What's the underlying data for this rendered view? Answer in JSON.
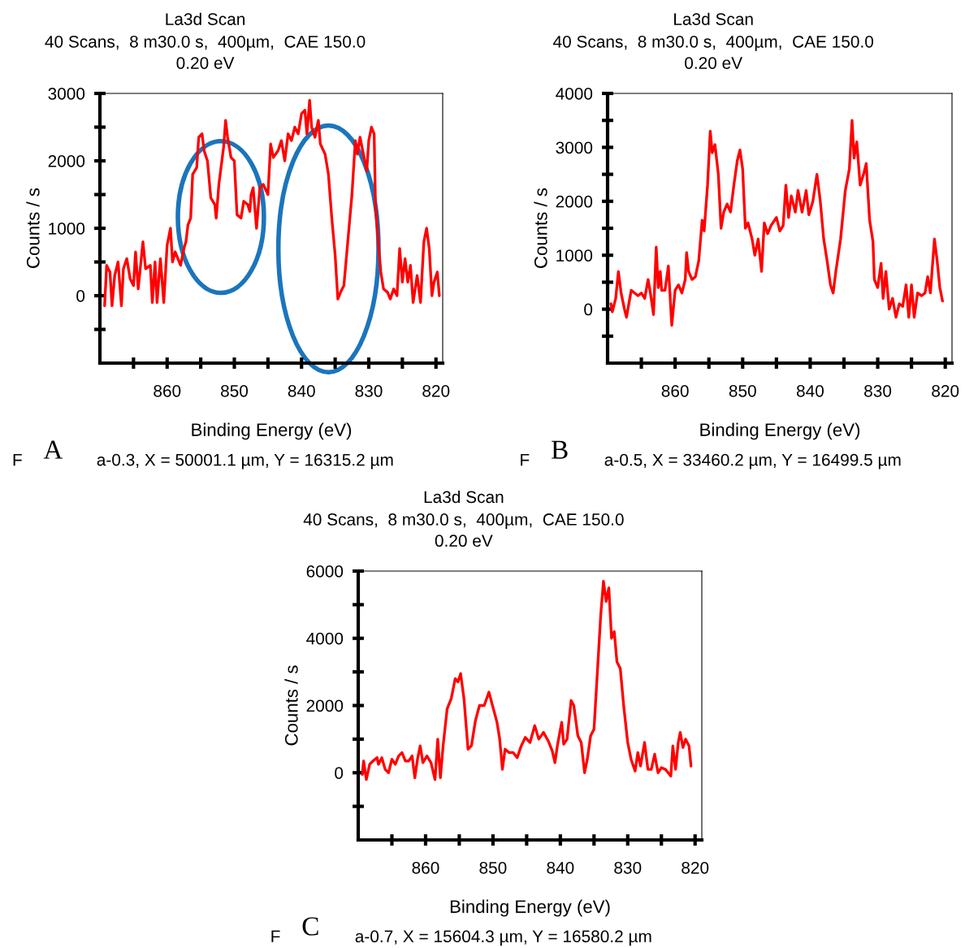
{
  "chart_data": [
    {
      "type": "line",
      "title": "La3d Scan",
      "subtitle": "40 Scans,  8 m30.0 s,  400µm,  CAE 150.0\n0.20 eV",
      "xlabel": "Binding Energy (eV)",
      "ylabel": "Counts / s",
      "annotations": [
        "F",
        "A",
        "a-0.3, X = 50001.1 µm, Y = 16315.2 µm"
      ],
      "xlim": [
        870,
        819
      ],
      "xticks": [
        {
          "value": 865,
          "label": null
        },
        860,
        {
          "value": 855,
          "label": null
        },
        850,
        {
          "value": 845,
          "label": null
        },
        840,
        {
          "value": 835,
          "label": null
        },
        830,
        {
          "value": 825,
          "label": null
        },
        820
      ],
      "ylim": [
        -1000,
        3000
      ],
      "yticks": [
        {
          "value": -500,
          "label": null
        },
        0,
        {
          "value": 500,
          "label": null
        },
        1000,
        {
          "value": 1500,
          "label": null
        },
        2000,
        {
          "value": 2500,
          "label": null
        },
        3000
      ],
      "grid": false,
      "line_style": "solid",
      "series": [
        {
          "color": "#ff0000",
          "x": [
            869.3,
            869,
            868.5,
            868.2,
            867.8,
            867.3,
            866.8,
            866.5,
            866,
            865.5,
            865,
            864.7,
            864.3,
            863.6,
            863.2,
            862.5,
            862.2,
            861.8,
            861.5,
            861,
            860.5,
            860,
            859.5,
            859.2,
            858.8,
            858,
            857.5,
            857.2,
            856.9,
            856.5,
            856.2,
            855.6,
            855.3,
            854.8,
            854.5,
            854,
            853.5,
            852.9,
            852.7,
            852.3,
            851.6,
            851.3,
            851,
            850.5,
            850,
            849.6,
            849,
            848.6,
            848,
            847.7,
            847.5,
            847.2,
            846.7,
            846.2,
            845.7,
            845,
            844.6,
            844.2,
            843.5,
            843,
            842.5,
            842,
            841.5,
            841,
            840.5,
            840,
            839.5,
            839.2,
            838.8,
            838.5,
            838,
            837.5,
            837.2,
            836.5,
            836,
            835.5,
            835,
            834.6,
            834.2,
            833.7,
            833.3,
            832.5,
            832,
            831.7,
            831.3,
            830.8,
            830.3,
            830,
            829.6,
            829.2,
            829,
            828.5,
            828.2,
            827.8,
            827.2,
            826.8,
            826.3,
            825.8,
            825.4,
            825,
            824.6,
            824.2,
            823.8,
            823.4,
            822.8,
            822.3,
            821.8,
            821.4,
            821,
            820.6,
            820.3,
            819.8,
            819.5
          ],
          "values": [
            -150,
            450,
            350,
            -150,
            300,
            500,
            -150,
            400,
            550,
            250,
            150,
            650,
            100,
            800,
            400,
            450,
            -100,
            500,
            -100,
            550,
            -100,
            750,
            1000,
            500,
            650,
            450,
            700,
            800,
            1050,
            1150,
            1800,
            1900,
            2350,
            2400,
            2150,
            2000,
            1450,
            1350,
            1150,
            1650,
            2200,
            2600,
            2350,
            2050,
            2000,
            1200,
            1150,
            1400,
            1350,
            1250,
            1500,
            1600,
            1000,
            1600,
            1650,
            1500,
            2250,
            2050,
            2150,
            2300,
            2000,
            2400,
            2300,
            2500,
            2400,
            2700,
            2750,
            2400,
            2900,
            2500,
            2350,
            2600,
            2250,
            2100,
            1800,
            1150,
            600,
            -50,
            50,
            150,
            600,
            1500,
            2300,
            2100,
            2350,
            2100,
            1850,
            2300,
            2500,
            2400,
            1350,
            700,
            350,
            100,
            50,
            -50,
            100,
            0,
            700,
            200,
            550,
            200,
            450,
            -100,
            300,
            -100,
            800,
            1000,
            700,
            0,
            200,
            350,
            0
          ]
        }
      ]
    },
    {
      "type": "line",
      "title": "La3d Scan",
      "subtitle": "40 Scans,  8 m30.0 s,  400µm,  CAE 150.0\n0.20 eV",
      "xlabel": "Binding Energy (eV)",
      "ylabel": "Counts / s",
      "annotations": [
        "F",
        "B",
        "a-0.5, X = 33460.2 µm, Y = 16499.5 µm"
      ],
      "xlim": [
        870,
        819
      ],
      "xticks": [
        {
          "value": 865,
          "label": null
        },
        860,
        {
          "value": 855,
          "label": null
        },
        850,
        {
          "value": 845,
          "label": null
        },
        840,
        {
          "value": 835,
          "label": null
        },
        830,
        {
          "value": 825,
          "label": null
        },
        820
      ],
      "ylim": [
        -1000,
        4000
      ],
      "yticks": [
        {
          "value": -500,
          "label": null
        },
        0,
        {
          "value": 500,
          "label": null
        },
        1000,
        {
          "value": 1500,
          "label": null
        },
        2000,
        {
          "value": 2500,
          "label": null
        },
        3000,
        {
          "value": 3500,
          "label": null
        },
        4000
      ],
      "grid": false,
      "line_style": "solid",
      "series": [
        {
          "color": "#ff0000",
          "x": [
            869.5,
            869.3,
            868.8,
            868.4,
            868,
            867.5,
            867.2,
            866.5,
            866,
            865.5,
            865,
            864.5,
            864,
            863.6,
            863.2,
            862.8,
            862.5,
            862.2,
            862,
            861.5,
            861,
            860.5,
            860,
            859.5,
            859,
            858.5,
            858.3,
            858,
            857.5,
            857,
            856.5,
            856,
            855.7,
            855.2,
            854.8,
            854.5,
            854.1,
            853.6,
            853.2,
            852.8,
            852.3,
            851.8,
            851.3,
            850.8,
            850.4,
            850,
            849.6,
            849.2,
            848.6,
            848.2,
            847.7,
            847.2,
            846.8,
            846.3,
            845.8,
            845,
            844.5,
            844,
            843.6,
            843.2,
            842.8,
            842.2,
            841.8,
            841.2,
            840.6,
            840.2,
            839.6,
            839,
            838.5,
            838,
            837.5,
            837,
            836.6,
            836.2,
            835.5,
            834.8,
            834.2,
            833.8,
            833.5,
            833.1,
            832.6,
            832.1,
            831.7,
            831.2,
            830.7,
            830.5,
            830,
            829.5,
            829.2,
            828.8,
            828.3,
            827.8,
            827.3,
            826.8,
            826.3,
            825.8,
            825.4,
            825,
            824.6,
            824.1,
            823.5,
            823,
            822.6,
            822.2,
            821.6,
            821.2,
            820.8,
            820.4
          ],
          "values": [
            100,
            -50,
            200,
            700,
            300,
            0,
            -150,
            350,
            300,
            250,
            300,
            200,
            550,
            250,
            -100,
            1150,
            400,
            700,
            350,
            350,
            800,
            -300,
            350,
            450,
            300,
            550,
            1050,
            700,
            550,
            600,
            900,
            1650,
            1450,
            2300,
            3300,
            2900,
            3050,
            2500,
            1500,
            1800,
            1950,
            1800,
            2300,
            2750,
            2950,
            2600,
            1500,
            1600,
            1300,
            1000,
            1300,
            700,
            1600,
            1400,
            1550,
            1700,
            1450,
            1550,
            2300,
            1700,
            2100,
            1800,
            2200,
            1800,
            2200,
            1750,
            2000,
            2500,
            2000,
            1300,
            900,
            450,
            300,
            700,
            1300,
            2200,
            2600,
            3500,
            2800,
            3100,
            2300,
            2500,
            2700,
            1650,
            1250,
            550,
            400,
            850,
            200,
            700,
            0,
            200,
            -150,
            100,
            50,
            450,
            -150,
            450,
            -150,
            300,
            250,
            300,
            600,
            300,
            1300,
            900,
            400,
            150
          ]
        }
      ]
    },
    {
      "type": "line",
      "title": "La3d Scan",
      "subtitle": "40 Scans,  8 m30.0 s,  400µm,  CAE 150.0\n0.20 eV",
      "xlabel": "Binding Energy (eV)",
      "ylabel": "Counts / s",
      "annotations": [
        "F",
        "C",
        "a-0.7, X = 15604.3 µm, Y = 16580.2 µm"
      ],
      "xlim": [
        870,
        819
      ],
      "xticks": [
        {
          "value": 865,
          "label": null
        },
        860,
        {
          "value": 855,
          "label": null
        },
        850,
        {
          "value": 845,
          "label": null
        },
        840,
        {
          "value": 835,
          "label": null
        },
        830,
        {
          "value": 825,
          "label": null
        },
        820
      ],
      "ylim": [
        -2000,
        6000
      ],
      "yticks": [
        {
          "value": -1000,
          "label": null
        },
        0,
        {
          "value": 1000,
          "label": null
        },
        2000,
        {
          "value": 3000,
          "label": null
        },
        4000,
        {
          "value": 5000,
          "label": null
        },
        6000
      ],
      "grid": false,
      "line_style": "solid",
      "series": [
        {
          "color": "#ff0000",
          "x": [
            869.4,
            869.2,
            868.8,
            868.3,
            867.8,
            867.2,
            867,
            866.5,
            866,
            865.5,
            865,
            864.5,
            864,
            863.5,
            863,
            862.5,
            862,
            861.6,
            861.2,
            860.8,
            860.4,
            859.8,
            859.2,
            858.6,
            858.2,
            857.8,
            857.4,
            856.8,
            856.2,
            855.6,
            855.2,
            854.8,
            854.3,
            853.7,
            853.2,
            852.6,
            852,
            851.3,
            850.6,
            850,
            849.4,
            849,
            848.6,
            848.2,
            847.6,
            847,
            846.4,
            845.8,
            845.2,
            844.5,
            843.8,
            843.2,
            842.5,
            841.8,
            841.2,
            840.8,
            840.4,
            839.8,
            839.5,
            839,
            838.4,
            838,
            837.4,
            836.9,
            836.4,
            836,
            835.5,
            835,
            834.5,
            834,
            833.6,
            833.2,
            832.8,
            832.4,
            832,
            831.6,
            831.1,
            830.6,
            830,
            829.5,
            828.9,
            828.5,
            828.1,
            827.5,
            827,
            826.5,
            826,
            825.5,
            825,
            824.4,
            824,
            823.6,
            823.3,
            822.9,
            822.5,
            822.2,
            821.8,
            821.4,
            820.9,
            820.6
          ],
          "values": [
            -50,
            350,
            -200,
            250,
            350,
            450,
            250,
            450,
            100,
            0,
            400,
            250,
            500,
            600,
            350,
            350,
            500,
            -150,
            400,
            800,
            300,
            500,
            300,
            -200,
            1000,
            -150,
            800,
            1900,
            2200,
            2800,
            2700,
            2950,
            2200,
            700,
            800,
            1550,
            2000,
            2000,
            2400,
            1950,
            1500,
            1000,
            100,
            700,
            600,
            600,
            450,
            800,
            1050,
            900,
            1400,
            1000,
            1200,
            950,
            650,
            300,
            850,
            1500,
            850,
            1000,
            2150,
            2000,
            1100,
            900,
            0,
            400,
            1100,
            1300,
            3000,
            4700,
            5700,
            5100,
            5500,
            4000,
            4200,
            3300,
            3100,
            2000,
            900,
            400,
            50,
            600,
            200,
            900,
            100,
            100,
            550,
            0,
            150,
            100,
            0,
            -100,
            800,
            100,
            900,
            1200,
            750,
            1000,
            800,
            200
          ]
        }
      ]
    }
  ]
}
